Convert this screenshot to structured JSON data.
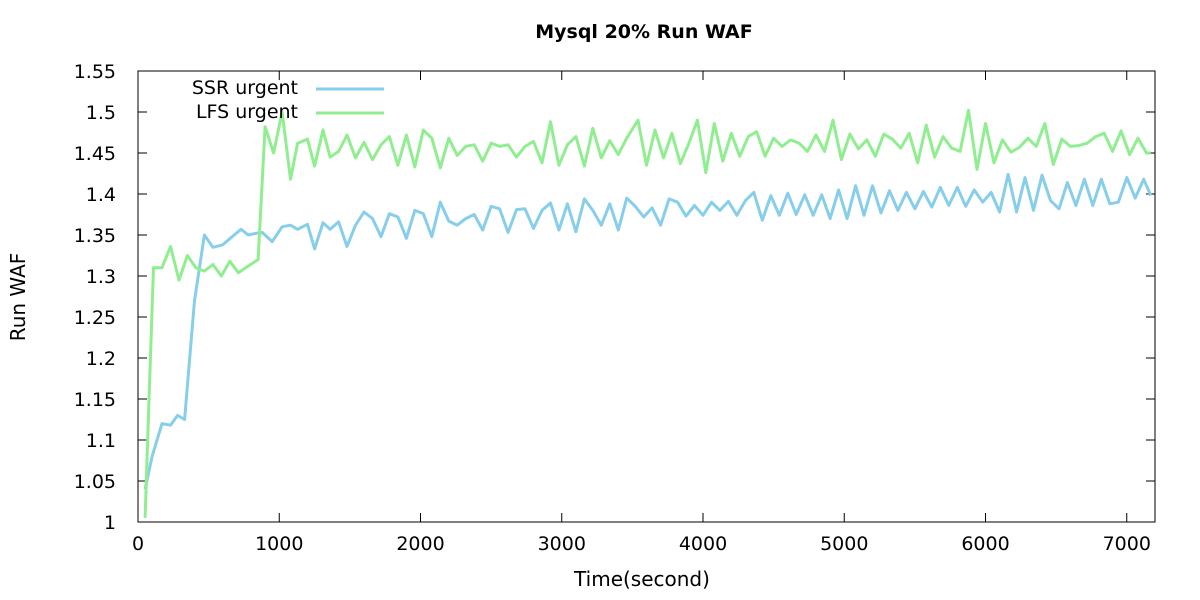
{
  "chart_data": {
    "type": "line",
    "title": "Mysql 20% Run WAF",
    "xlabel": "Time(second)",
    "ylabel": "Run WAF",
    "xlim": [
      0,
      7200
    ],
    "ylim": [
      1,
      1.55
    ],
    "x_ticks": [
      "0",
      "1000",
      "2000",
      "3000",
      "4000",
      "5000",
      "6000",
      "7000"
    ],
    "y_ticks": [
      "1",
      "1.05",
      "1.1",
      "1.15",
      "1.2",
      "1.25",
      "1.3",
      "1.35",
      "1.4",
      "1.45",
      "1.5",
      "1.55"
    ],
    "legend_position": "top-left",
    "grid": false,
    "series": [
      {
        "name": "SSR urgent",
        "color": "#87ceeb",
        "points": [
          [
            50,
            1.04
          ],
          [
            100,
            1.08
          ],
          [
            170,
            1.12
          ],
          [
            230,
            1.118
          ],
          [
            280,
            1.13
          ],
          [
            330,
            1.125
          ],
          [
            400,
            1.27
          ],
          [
            470,
            1.35
          ],
          [
            530,
            1.335
          ],
          [
            600,
            1.338
          ],
          [
            680,
            1.35
          ],
          [
            730,
            1.357
          ],
          [
            780,
            1.35
          ],
          [
            830,
            1.352
          ],
          [
            880,
            1.353
          ],
          [
            950,
            1.342
          ],
          [
            1020,
            1.36
          ],
          [
            1080,
            1.362
          ],
          [
            1130,
            1.357
          ],
          [
            1200,
            1.363
          ],
          [
            1250,
            1.333
          ],
          [
            1310,
            1.365
          ],
          [
            1360,
            1.357
          ],
          [
            1420,
            1.366
          ],
          [
            1480,
            1.336
          ],
          [
            1540,
            1.362
          ],
          [
            1600,
            1.378
          ],
          [
            1660,
            1.37
          ],
          [
            1720,
            1.348
          ],
          [
            1780,
            1.376
          ],
          [
            1840,
            1.372
          ],
          [
            1900,
            1.346
          ],
          [
            1960,
            1.38
          ],
          [
            2020,
            1.376
          ],
          [
            2080,
            1.348
          ],
          [
            2140,
            1.39
          ],
          [
            2200,
            1.367
          ],
          [
            2260,
            1.362
          ],
          [
            2320,
            1.37
          ],
          [
            2380,
            1.375
          ],
          [
            2440,
            1.356
          ],
          [
            2500,
            1.385
          ],
          [
            2560,
            1.382
          ],
          [
            2620,
            1.353
          ],
          [
            2680,
            1.381
          ],
          [
            2740,
            1.382
          ],
          [
            2800,
            1.358
          ],
          [
            2860,
            1.38
          ],
          [
            2920,
            1.389
          ],
          [
            2980,
            1.356
          ],
          [
            3040,
            1.388
          ],
          [
            3100,
            1.354
          ],
          [
            3160,
            1.394
          ],
          [
            3220,
            1.38
          ],
          [
            3280,
            1.362
          ],
          [
            3340,
            1.388
          ],
          [
            3400,
            1.356
          ],
          [
            3460,
            1.395
          ],
          [
            3520,
            1.385
          ],
          [
            3580,
            1.372
          ],
          [
            3640,
            1.383
          ],
          [
            3700,
            1.362
          ],
          [
            3760,
            1.394
          ],
          [
            3820,
            1.39
          ],
          [
            3880,
            1.373
          ],
          [
            3940,
            1.386
          ],
          [
            4000,
            1.374
          ],
          [
            4060,
            1.39
          ],
          [
            4120,
            1.38
          ],
          [
            4180,
            1.391
          ],
          [
            4240,
            1.374
          ],
          [
            4300,
            1.392
          ],
          [
            4360,
            1.402
          ],
          [
            4420,
            1.368
          ],
          [
            4480,
            1.398
          ],
          [
            4540,
            1.374
          ],
          [
            4600,
            1.401
          ],
          [
            4660,
            1.375
          ],
          [
            4720,
            1.399
          ],
          [
            4780,
            1.374
          ],
          [
            4840,
            1.399
          ],
          [
            4900,
            1.37
          ],
          [
            4960,
            1.405
          ],
          [
            5020,
            1.37
          ],
          [
            5080,
            1.41
          ],
          [
            5140,
            1.374
          ],
          [
            5200,
            1.41
          ],
          [
            5260,
            1.377
          ],
          [
            5320,
            1.404
          ],
          [
            5380,
            1.38
          ],
          [
            5440,
            1.402
          ],
          [
            5500,
            1.382
          ],
          [
            5560,
            1.403
          ],
          [
            5620,
            1.384
          ],
          [
            5680,
            1.408
          ],
          [
            5740,
            1.386
          ],
          [
            5800,
            1.408
          ],
          [
            5860,
            1.385
          ],
          [
            5920,
            1.405
          ],
          [
            5980,
            1.39
          ],
          [
            6040,
            1.402
          ],
          [
            6100,
            1.378
          ],
          [
            6160,
            1.424
          ],
          [
            6220,
            1.378
          ],
          [
            6280,
            1.42
          ],
          [
            6340,
            1.38
          ],
          [
            6400,
            1.423
          ],
          [
            6460,
            1.392
          ],
          [
            6520,
            1.382
          ],
          [
            6580,
            1.414
          ],
          [
            6640,
            1.386
          ],
          [
            6700,
            1.418
          ],
          [
            6760,
            1.386
          ],
          [
            6820,
            1.418
          ],
          [
            6880,
            1.388
          ],
          [
            6940,
            1.39
          ],
          [
            7000,
            1.42
          ],
          [
            7060,
            1.395
          ],
          [
            7120,
            1.418
          ],
          [
            7170,
            1.398
          ]
        ]
      },
      {
        "name": "LFS urgent",
        "color": "#90ee90",
        "points": [
          [
            50,
            1.005
          ],
          [
            80,
            1.16
          ],
          [
            110,
            1.31
          ],
          [
            170,
            1.31
          ],
          [
            230,
            1.336
          ],
          [
            290,
            1.295
          ],
          [
            350,
            1.325
          ],
          [
            410,
            1.31
          ],
          [
            470,
            1.306
          ],
          [
            530,
            1.314
          ],
          [
            590,
            1.3
          ],
          [
            650,
            1.318
          ],
          [
            710,
            1.304
          ],
          [
            770,
            1.311
          ],
          [
            850,
            1.32
          ],
          [
            900,
            1.482
          ],
          [
            960,
            1.45
          ],
          [
            1020,
            1.5
          ],
          [
            1080,
            1.418
          ],
          [
            1130,
            1.462
          ],
          [
            1200,
            1.467
          ],
          [
            1250,
            1.434
          ],
          [
            1310,
            1.478
          ],
          [
            1360,
            1.445
          ],
          [
            1420,
            1.452
          ],
          [
            1480,
            1.472
          ],
          [
            1540,
            1.444
          ],
          [
            1600,
            1.463
          ],
          [
            1660,
            1.442
          ],
          [
            1720,
            1.46
          ],
          [
            1780,
            1.47
          ],
          [
            1840,
            1.435
          ],
          [
            1900,
            1.472
          ],
          [
            1960,
            1.433
          ],
          [
            2020,
            1.478
          ],
          [
            2080,
            1.468
          ],
          [
            2140,
            1.432
          ],
          [
            2200,
            1.468
          ],
          [
            2260,
            1.447
          ],
          [
            2320,
            1.458
          ],
          [
            2380,
            1.46
          ],
          [
            2440,
            1.44
          ],
          [
            2500,
            1.462
          ],
          [
            2560,
            1.458
          ],
          [
            2620,
            1.46
          ],
          [
            2680,
            1.445
          ],
          [
            2740,
            1.458
          ],
          [
            2800,
            1.464
          ],
          [
            2860,
            1.438
          ],
          [
            2920,
            1.488
          ],
          [
            2980,
            1.435
          ],
          [
            3040,
            1.46
          ],
          [
            3100,
            1.47
          ],
          [
            3160,
            1.434
          ],
          [
            3220,
            1.48
          ],
          [
            3280,
            1.444
          ],
          [
            3340,
            1.465
          ],
          [
            3400,
            1.448
          ],
          [
            3460,
            1.468
          ],
          [
            3540,
            1.49
          ],
          [
            3600,
            1.435
          ],
          [
            3660,
            1.478
          ],
          [
            3720,
            1.444
          ],
          [
            3780,
            1.474
          ],
          [
            3840,
            1.437
          ],
          [
            3900,
            1.462
          ],
          [
            3960,
            1.49
          ],
          [
            4020,
            1.426
          ],
          [
            4080,
            1.486
          ],
          [
            4140,
            1.44
          ],
          [
            4200,
            1.474
          ],
          [
            4260,
            1.446
          ],
          [
            4320,
            1.47
          ],
          [
            4380,
            1.476
          ],
          [
            4440,
            1.446
          ],
          [
            4500,
            1.468
          ],
          [
            4560,
            1.458
          ],
          [
            4620,
            1.466
          ],
          [
            4680,
            1.462
          ],
          [
            4740,
            1.452
          ],
          [
            4800,
            1.472
          ],
          [
            4860,
            1.452
          ],
          [
            4920,
            1.49
          ],
          [
            4980,
            1.442
          ],
          [
            5040,
            1.473
          ],
          [
            5100,
            1.455
          ],
          [
            5160,
            1.466
          ],
          [
            5220,
            1.446
          ],
          [
            5280,
            1.473
          ],
          [
            5340,
            1.467
          ],
          [
            5400,
            1.456
          ],
          [
            5460,
            1.474
          ],
          [
            5520,
            1.438
          ],
          [
            5580,
            1.484
          ],
          [
            5640,
            1.445
          ],
          [
            5700,
            1.47
          ],
          [
            5760,
            1.456
          ],
          [
            5820,
            1.452
          ],
          [
            5880,
            1.502
          ],
          [
            5940,
            1.43
          ],
          [
            6000,
            1.486
          ],
          [
            6060,
            1.438
          ],
          [
            6120,
            1.466
          ],
          [
            6180,
            1.451
          ],
          [
            6240,
            1.457
          ],
          [
            6300,
            1.468
          ],
          [
            6360,
            1.458
          ],
          [
            6420,
            1.486
          ],
          [
            6480,
            1.436
          ],
          [
            6540,
            1.467
          ],
          [
            6600,
            1.458
          ],
          [
            6660,
            1.459
          ],
          [
            6720,
            1.462
          ],
          [
            6780,
            1.47
          ],
          [
            6840,
            1.474
          ],
          [
            6900,
            1.452
          ],
          [
            6960,
            1.477
          ],
          [
            7020,
            1.448
          ],
          [
            7080,
            1.468
          ],
          [
            7140,
            1.45
          ],
          [
            7170,
            1.45
          ]
        ]
      }
    ]
  }
}
